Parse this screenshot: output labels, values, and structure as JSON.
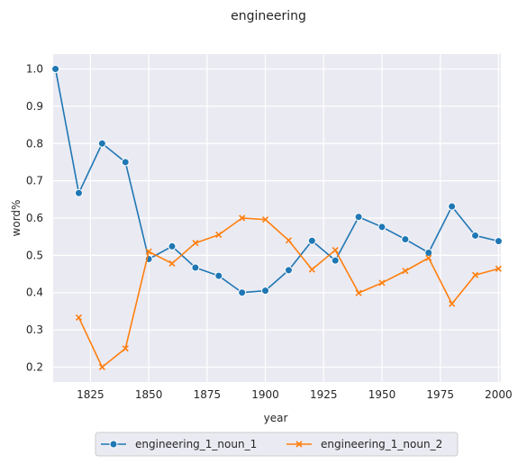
{
  "chart_data": {
    "type": "line",
    "title": "engineering",
    "xlabel": "year",
    "ylabel": "word%",
    "xlim": [
      1809,
      2001
    ],
    "ylim": [
      0.16,
      1.04
    ],
    "grid": true,
    "legend_position": "bottom-center",
    "x_ticks": [
      1825,
      1850,
      1875,
      1900,
      1925,
      1950,
      1975,
      2000
    ],
    "x_tick_labels": [
      "1825",
      "1850",
      "1875",
      "1900",
      "1925",
      "1950",
      "1975",
      "2000"
    ],
    "y_ticks": [
      0.2,
      0.3,
      0.4,
      0.5,
      0.6,
      0.7,
      0.8,
      0.9,
      1.0
    ],
    "y_tick_labels": [
      "0.2",
      "0.3",
      "0.4",
      "0.5",
      "0.6",
      "0.7",
      "0.8",
      "0.9",
      "1.0"
    ],
    "series": [
      {
        "name": "engineering_1_noun_1",
        "color": "#1f77b4",
        "marker": "circle",
        "x": [
          1810,
          1820,
          1830,
          1840,
          1850,
          1860,
          1870,
          1880,
          1890,
          1900,
          1910,
          1920,
          1930,
          1940,
          1950,
          1960,
          1970,
          1980,
          1990,
          2000
        ],
        "y": [
          1.0,
          0.667,
          0.8,
          0.75,
          0.49,
          0.524,
          0.467,
          0.445,
          0.4,
          0.405,
          0.46,
          0.539,
          0.486,
          0.603,
          0.576,
          0.543,
          0.507,
          0.631,
          0.553,
          0.538
        ]
      },
      {
        "name": "engineering_1_noun_2",
        "color": "#ff7f0e",
        "marker": "x",
        "x": [
          1820,
          1830,
          1840,
          1850,
          1860,
          1870,
          1880,
          1890,
          1900,
          1910,
          1920,
          1930,
          1940,
          1950,
          1960,
          1970,
          1980,
          1990,
          2000
        ],
        "y": [
          0.333,
          0.2,
          0.25,
          0.51,
          0.478,
          0.533,
          0.555,
          0.6,
          0.596,
          0.54,
          0.462,
          0.514,
          0.399,
          0.426,
          0.458,
          0.493,
          0.37,
          0.447,
          0.464
        ]
      }
    ]
  }
}
